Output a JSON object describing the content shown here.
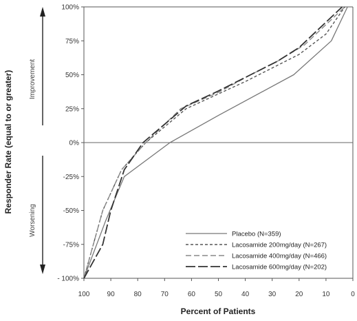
{
  "chart_data": {
    "type": "line",
    "title": "",
    "xlabel": "Percent of Patients",
    "ylabel": "Responder Rate (equal to or greater)",
    "xlim": [
      100,
      0
    ],
    "ylim": [
      -100,
      100
    ],
    "x_ticks": [
      100,
      90,
      80,
      70,
      60,
      50,
      40,
      30,
      20,
      10,
      0
    ],
    "y_ticks": [
      {
        "value": 100,
        "label": "100%"
      },
      {
        "value": 75,
        "label": "75%"
      },
      {
        "value": 50,
        "label": "50%"
      },
      {
        "value": 25,
        "label": "25%"
      },
      {
        "value": 0,
        "label": "0%"
      },
      {
        "value": -25,
        "label": "-25%"
      },
      {
        "value": -50,
        "label": "-50%"
      },
      {
        "value": -75,
        "label": "-75%"
      },
      {
        "value": -100,
        "label": "- 100%"
      }
    ],
    "upper_region_label": "Improvement",
    "lower_region_label": "Worsening",
    "grid": false,
    "legend_position": "bottom-right",
    "series": [
      {
        "name": "Placebo (N=359)",
        "style": "solid",
        "points": [
          [
            100,
            -100
          ],
          [
            92,
            -58
          ],
          [
            85,
            -25
          ],
          [
            68,
            0
          ],
          [
            50,
            20
          ],
          [
            22,
            50
          ],
          [
            8,
            75
          ],
          [
            2,
            100
          ]
        ]
      },
      {
        "name": "Lacosamide 200mg/day (N=267)",
        "style": "short-dash",
        "points": [
          [
            100,
            -100
          ],
          [
            93,
            -50
          ],
          [
            86,
            -20
          ],
          [
            77,
            0
          ],
          [
            62,
            25
          ],
          [
            40,
            45
          ],
          [
            20,
            65
          ],
          [
            10,
            80
          ],
          [
            3,
            100
          ]
        ]
      },
      {
        "name": "Lacosamide 400mg/day (N=466)",
        "style": "medium-dash",
        "points": [
          [
            100,
            -100
          ],
          [
            93,
            -50
          ],
          [
            86,
            -20
          ],
          [
            77,
            0
          ],
          [
            64,
            25
          ],
          [
            50,
            37
          ],
          [
            38,
            50
          ],
          [
            28,
            60
          ],
          [
            18,
            72
          ],
          [
            3,
            100
          ]
        ]
      },
      {
        "name": "Lacosamide 600mg/day (N=202)",
        "style": "long-dash",
        "points": [
          [
            100,
            -100
          ],
          [
            93,
            -75
          ],
          [
            90,
            -50
          ],
          [
            85,
            -20
          ],
          [
            78,
            0
          ],
          [
            62,
            27
          ],
          [
            50,
            38
          ],
          [
            38,
            50
          ],
          [
            28,
            60
          ],
          [
            20,
            70
          ],
          [
            4,
            100
          ]
        ]
      }
    ]
  }
}
